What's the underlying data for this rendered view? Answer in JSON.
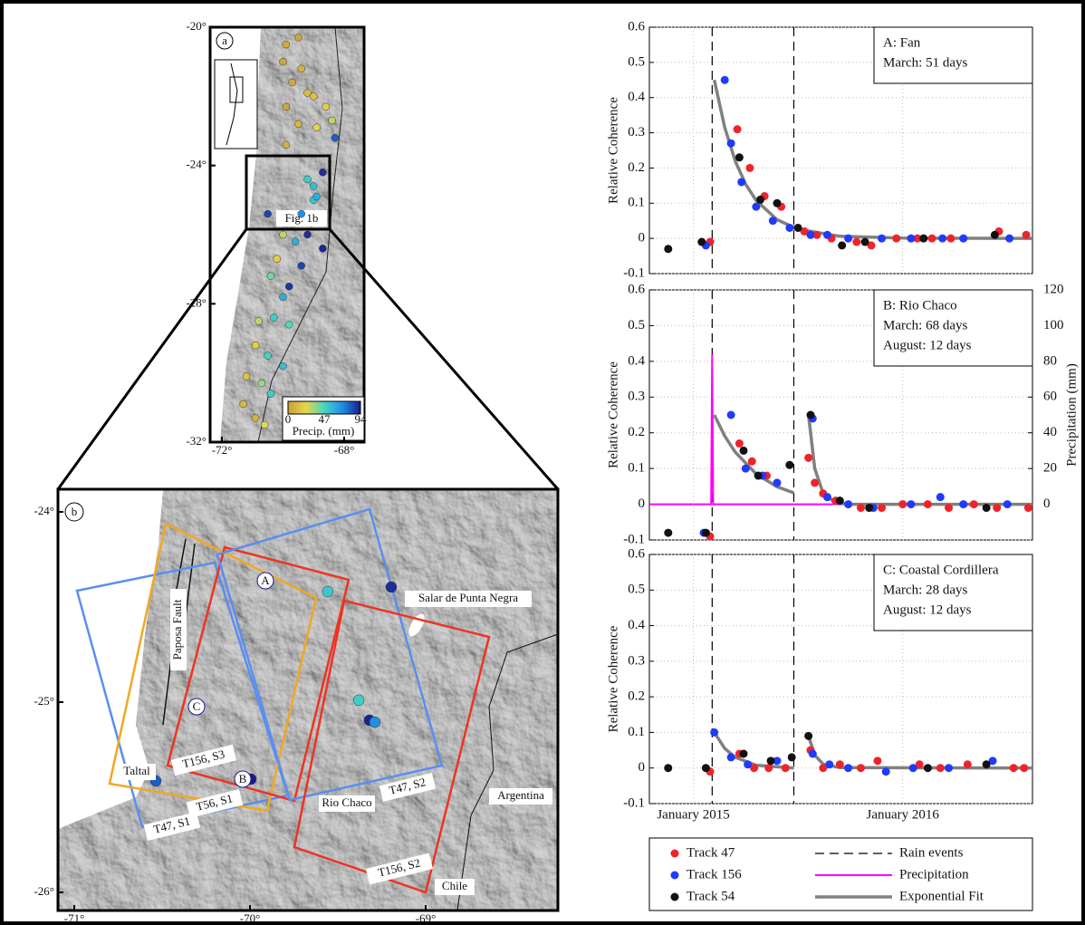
{
  "maps": [
    {
      "label": "a",
      "inset_label": "Fig. 1b",
      "lat_ticks": [
        {
          "value": -20,
          "label": "-20°"
        },
        {
          "value": -24,
          "label": "-24°"
        },
        {
          "value": -28,
          "label": "-28°"
        },
        {
          "value": -32,
          "label": "-32°"
        }
      ],
      "lon_ticks": [
        {
          "value": -72,
          "label": "-72°"
        },
        {
          "value": -68,
          "label": "-68°"
        }
      ],
      "colorbar": {
        "label": "Precip. (mm)",
        "range": [
          0,
          94
        ],
        "ticks": [
          0,
          47,
          94
        ],
        "colors": [
          "#c9a03c",
          "#e6d64a",
          "#45d6c4",
          "#1e8ee6",
          "#1a1a8a"
        ]
      },
      "stations": [
        [
          -69.9,
          -20.5,
          5
        ],
        [
          -69.5,
          -20.3,
          3
        ],
        [
          -70.0,
          -21.0,
          2
        ],
        [
          -69.4,
          -21.2,
          8
        ],
        [
          -69.7,
          -21.6,
          4
        ],
        [
          -69.2,
          -21.9,
          12
        ],
        [
          -69.9,
          -22.3,
          3
        ],
        [
          -69.0,
          -22.0,
          15
        ],
        [
          -68.6,
          -22.3,
          20
        ],
        [
          -69.5,
          -22.8,
          10
        ],
        [
          -68.9,
          -22.9,
          25
        ],
        [
          -68.3,
          -23.2,
          80
        ],
        [
          -68.4,
          -22.7,
          30
        ],
        [
          -69.9,
          -23.4,
          8
        ],
        [
          -69.2,
          -24.4,
          50
        ],
        [
          -69.0,
          -24.6,
          55
        ],
        [
          -68.7,
          -24.2,
          90
        ],
        [
          -70.5,
          -25.4,
          85
        ],
        [
          -69.0,
          -25.0,
          52
        ],
        [
          -68.9,
          -24.9,
          60
        ],
        [
          -69.4,
          -25.4,
          70
        ],
        [
          -70.0,
          -26.0,
          30
        ],
        [
          -69.6,
          -26.2,
          60
        ],
        [
          -69.2,
          -26.0,
          90
        ],
        [
          -68.7,
          -26.4,
          92
        ],
        [
          -70.2,
          -26.7,
          20
        ],
        [
          -69.4,
          -26.9,
          85
        ],
        [
          -70.4,
          -27.2,
          40
        ],
        [
          -69.8,
          -27.5,
          88
        ],
        [
          -70.0,
          -27.8,
          60
        ],
        [
          -70.8,
          -28.5,
          30
        ],
        [
          -70.3,
          -28.4,
          50
        ],
        [
          -69.8,
          -28.6,
          45
        ],
        [
          -70.9,
          -29.2,
          20
        ],
        [
          -70.5,
          -29.5,
          48
        ],
        [
          -70.0,
          -29.8,
          55
        ],
        [
          -71.2,
          -30.1,
          15
        ],
        [
          -70.7,
          -30.3,
          35
        ],
        [
          -70.4,
          -30.6,
          50
        ],
        [
          -71.3,
          -30.9,
          10
        ],
        [
          -70.9,
          -31.3,
          8
        ],
        [
          -70.6,
          -31.5,
          25
        ]
      ]
    },
    {
      "label": "b",
      "lat_ticks": [
        {
          "value": -24,
          "label": "-24°"
        },
        {
          "value": -25,
          "label": "-25°"
        },
        {
          "value": -26,
          "label": "-26°"
        }
      ],
      "lon_ticks": [
        {
          "value": -71,
          "label": "-71°"
        },
        {
          "value": -70,
          "label": "-70°"
        },
        {
          "value": -69,
          "label": "-69°"
        }
      ],
      "stations": [
        [
          -70.536,
          -25.414,
          80
        ],
        [
          -69.995,
          -25.405,
          94
        ],
        [
          -69.557,
          -24.419,
          52
        ],
        [
          -69.196,
          -24.395,
          90
        ],
        [
          -69.381,
          -24.99,
          50
        ],
        [
          -69.32,
          -25.095,
          92
        ],
        [
          -69.289,
          -25.105,
          70
        ]
      ],
      "sites": [
        "A",
        "B",
        "C"
      ],
      "places": [
        "Taltal",
        "Rio Chaco",
        "Salar de Punta Negra",
        "Argentina",
        "Chile",
        "Paposa Fault"
      ],
      "swaths": [
        "T156, S3",
        "T47, S2",
        "T156, S2",
        "T47, S1",
        "T56, S1"
      ]
    }
  ],
  "chart_data": [
    {
      "type": "scatter",
      "annotation": [
        "A: Fan",
        "March: 51 days"
      ],
      "ylabel": "Relative Coherence",
      "xlim": [
        2014.79,
        2016.62
      ],
      "ylim": [
        -0.1,
        0.6
      ],
      "yticks": [
        0.6,
        0.5,
        0.4,
        0.3,
        0.2,
        0.1,
        0,
        -0.1
      ],
      "grid": true,
      "rain_events": {
        "name": "Rain events",
        "x": [
          2015.09,
          2015.48
        ]
      },
      "series": [
        {
          "name": "Exponential Fit",
          "type": "line",
          "color": "#808080",
          "x": [
            2015.1,
            2015.15,
            2015.2,
            2015.25,
            2015.3,
            2015.4,
            2015.5,
            2015.7,
            2016.0,
            2016.62
          ],
          "values": [
            0.45,
            0.315,
            0.22,
            0.154,
            0.108,
            0.053,
            0.026,
            0.006,
            0.001,
            0
          ]
        },
        {
          "name": "Track 47",
          "color": "#f0232a",
          "x": [
            2015.08,
            2015.21,
            2015.27,
            2015.34,
            2015.42,
            2015.53,
            2015.59,
            2015.66,
            2015.78,
            2015.85,
            2015.97,
            2016.07,
            2016.14,
            2016.23,
            2016.46,
            2016.59
          ],
          "values": [
            -0.01,
            0.31,
            0.2,
            0.12,
            0.09,
            0.02,
            0.01,
            0,
            -0.01,
            -0.02,
            0,
            0,
            0,
            0,
            0.02,
            0.01
          ]
        },
        {
          "name": "Track 156",
          "color": "#1f3bff",
          "x": [
            2015.06,
            2015.15,
            2015.18,
            2015.23,
            2015.3,
            2015.38,
            2015.46,
            2015.56,
            2015.64,
            2015.74,
            2015.9,
            2016.04,
            2016.19,
            2016.29,
            2016.51
          ],
          "values": [
            -0.02,
            0.45,
            0.27,
            0.16,
            0.09,
            0.05,
            0.03,
            0.01,
            0.01,
            0,
            0,
            0,
            0,
            0,
            0
          ]
        },
        {
          "name": "Track 54",
          "color": "#111111",
          "x": [
            2014.88,
            2015.04,
            2015.22,
            2015.32,
            2015.4,
            2015.5,
            2015.71,
            2015.82,
            2016.1,
            2016.44
          ],
          "values": [
            -0.03,
            -0.01,
            0.23,
            0.11,
            0.1,
            0.03,
            -0.02,
            -0.01,
            0,
            0.01
          ]
        }
      ]
    },
    {
      "type": "scatter",
      "annotation": [
        "B: Rio Chaco",
        "March: 68 days",
        "August: 12 days"
      ],
      "ylabel": "Relative Coherence",
      "y2label": "Precipitation  (mm)",
      "xlim": [
        2014.79,
        2016.62
      ],
      "ylim": [
        -0.1,
        0.6
      ],
      "yticks": [
        0.6,
        0.5,
        0.4,
        0.3,
        0.2,
        0.1,
        0,
        -0.1
      ],
      "y2lim": [
        -20,
        120
      ],
      "y2ticks": [
        0,
        20,
        40,
        60,
        80,
        100,
        120
      ],
      "grid": true,
      "rain_events": {
        "name": "Rain events",
        "x": [
          2015.09,
          2015.48
        ]
      },
      "series": [
        {
          "name": "Precipitation",
          "type": "line",
          "axis": "y2",
          "color": "#ff00ff",
          "x": [
            2014.79,
            2015.085,
            2015.09,
            2015.095,
            2016.62
          ],
          "values": [
            0,
            0,
            84,
            0,
            0
          ]
        },
        {
          "name": "Exponential Fit",
          "type": "line",
          "color": "#808080",
          "x": [
            2015.1,
            2015.15,
            2015.2,
            2015.3,
            2015.4,
            2015.48,
            2015.5,
            2015.55,
            2015.58,
            2015.62,
            2015.68,
            2015.76,
            2015.9,
            2016.62
          ],
          "values": [
            0.25,
            0.191,
            0.146,
            0.085,
            0.049,
            0.032,
            null,
            0.25,
            0.1,
            0.03,
            0.004,
            0,
            0,
            0
          ]
        },
        {
          "name": "Track 47",
          "color": "#f0232a",
          "x": [
            2015.08,
            2015.22,
            2015.28,
            2015.35,
            2015.55,
            2015.58,
            2015.62,
            2015.68,
            2015.8,
            2015.9,
            2016.0,
            2016.12,
            2016.22,
            2016.34,
            2016.45,
            2016.6
          ],
          "values": [
            -0.09,
            0.17,
            0.12,
            0.08,
            0.13,
            0.06,
            0.03,
            0.01,
            -0.01,
            -0.01,
            0,
            0,
            -0.01,
            0,
            -0.01,
            -0.01
          ]
        },
        {
          "name": "Track 156",
          "color": "#1f3bff",
          "x": [
            2015.05,
            2015.18,
            2015.25,
            2015.33,
            2015.4,
            2015.57,
            2015.64,
            2015.74,
            2015.86,
            2016.04,
            2016.18,
            2016.29,
            2016.5
          ],
          "values": [
            -0.08,
            0.25,
            0.1,
            0.08,
            0.06,
            0.24,
            0.02,
            0,
            -0.01,
            0,
            0.02,
            0,
            0
          ]
        },
        {
          "name": "Track 54",
          "color": "#111111",
          "x": [
            2014.88,
            2015.06,
            2015.24,
            2015.31,
            2015.46,
            2015.56,
            2015.7,
            2015.84,
            2016.4
          ],
          "values": [
            -0.08,
            -0.08,
            0.15,
            0.08,
            0.11,
            0.25,
            0.01,
            -0.01,
            -0.01
          ]
        }
      ]
    },
    {
      "type": "scatter",
      "annotation": [
        "C: Coastal Cordillera",
        "March: 28 days",
        "August: 12 days"
      ],
      "ylabel": "Relative Coherence",
      "xlim": [
        2014.79,
        2016.62
      ],
      "xticks": [
        {
          "value": 2015,
          "label": "January 2015"
        },
        {
          "value": 2016,
          "label": "January 2016"
        }
      ],
      "ylim": [
        -0.1,
        0.6
      ],
      "yticks": [
        0.6,
        0.5,
        0.4,
        0.3,
        0.2,
        0.1,
        0,
        -0.1
      ],
      "grid": true,
      "rain_events": {
        "name": "Rain events",
        "x": [
          2015.09,
          2015.48
        ]
      },
      "series": [
        {
          "name": "Exponential Fit",
          "type": "line",
          "color": "#808080",
          "x": [
            2015.1,
            2015.15,
            2015.2,
            2015.3,
            2015.48,
            2015.5,
            2015.55,
            2015.58,
            2015.62,
            2015.7,
            2016.62
          ],
          "values": [
            0.1,
            0.055,
            0.03,
            0.008,
            0,
            null,
            0.09,
            0.036,
            0.011,
            0.001,
            0
          ]
        },
        {
          "name": "Track 47",
          "color": "#f0232a",
          "x": [
            2015.08,
            2015.22,
            2015.29,
            2015.36,
            2015.44,
            2015.56,
            2015.62,
            2015.7,
            2015.8,
            2015.88,
            2016.08,
            2016.18,
            2016.31,
            2016.53,
            2016.58
          ],
          "values": [
            -0.01,
            0.04,
            0,
            0,
            0,
            0.05,
            0,
            0.01,
            0,
            0.02,
            0.01,
            0,
            0.01,
            0,
            0
          ]
        },
        {
          "name": "Track 156",
          "color": "#1f3bff",
          "x": [
            2015.1,
            2015.18,
            2015.26,
            2015.4,
            2015.57,
            2015.65,
            2015.74,
            2015.92,
            2016.05,
            2016.22,
            2016.43
          ],
          "values": [
            0.1,
            0.03,
            0.01,
            0.02,
            0.04,
            0.01,
            0,
            -0.01,
            0,
            0,
            0.02
          ]
        },
        {
          "name": "Track 54",
          "color": "#111111",
          "x": [
            2014.88,
            2015.06,
            2015.24,
            2015.37,
            2015.47,
            2015.55,
            2016.12,
            2016.4
          ],
          "values": [
            0,
            0,
            0.04,
            0.02,
            0.03,
            0.09,
            0,
            0.01
          ]
        }
      ]
    }
  ]
}
